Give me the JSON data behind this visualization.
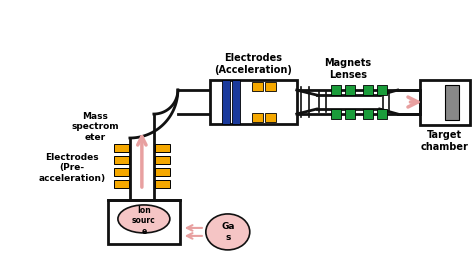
{
  "bg_color": "#ffffff",
  "pipe_color": "#111111",
  "pipe_lw": 2.0,
  "blue_color": "#1a3a9c",
  "yellow_color": "#f5a800",
  "green_color": "#1a9c3a",
  "gray_color": "#888888",
  "arrow_color": "#e8a0a0",
  "ion_source_fill": "#f5c5c5",
  "gas_fill": "#f5c5c5",
  "labels": {
    "electrodes_accel": "Electrodes\n(Acceleration)",
    "magnets_lenses": "Magnets\nLenses",
    "mass_spectrometer": "Mass\nspectrom\neter",
    "electrodes_preaccel": "Electrodes\n(Pre-\nacceleration)",
    "ion_source": "Ion\nsourc\ne",
    "gas": "Ga\ns",
    "target_chamber": "Target\nchamber"
  },
  "figsize": [
    4.74,
    2.72
  ],
  "dpi": 100
}
